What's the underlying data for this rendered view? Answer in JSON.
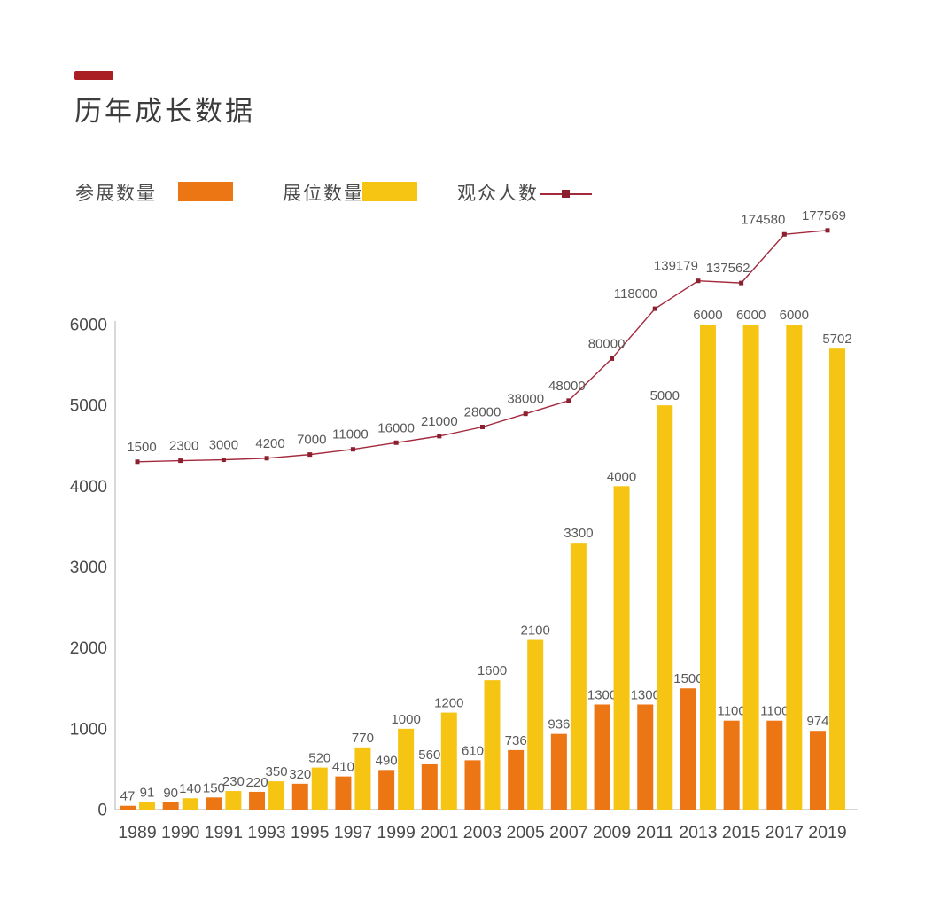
{
  "header": {
    "title": "历年成长数据",
    "accent_color": "#a91f24"
  },
  "legend": {
    "items": [
      {
        "label": "参展数量",
        "marker": "bar",
        "color": "#ec7514"
      },
      {
        "label": "展位数量",
        "marker": "bar",
        "color": "#f6c514"
      },
      {
        "label": "观众人数",
        "marker": "line",
        "color": "#a3293c"
      }
    ]
  },
  "chart_data": {
    "type": "combo-bar-line",
    "title": "历年成长数据",
    "categories": [
      "1989",
      "1990",
      "1991",
      "1993",
      "1995",
      "1997",
      "1999",
      "2001",
      "2003",
      "2005",
      "2007",
      "2009",
      "2011",
      "2013",
      "2015",
      "2017",
      "2019"
    ],
    "series": [
      {
        "name": "参展数量",
        "type": "bar",
        "color": "#ec7514",
        "values": [
          47,
          90,
          150,
          220,
          320,
          410,
          490,
          560,
          610,
          736,
          936,
          1300,
          1300,
          1500,
          1100,
          1100,
          974
        ]
      },
      {
        "name": "展位数量",
        "type": "bar",
        "color": "#f6c514",
        "values": [
          91,
          140,
          230,
          350,
          520,
          770,
          1000,
          1200,
          1600,
          2100,
          3300,
          4000,
          5000,
          6000,
          6000,
          6000,
          5702
        ]
      },
      {
        "name": "观众人数",
        "type": "line",
        "color": "#a3293c",
        "marker_color": "#8c1f2e",
        "values": [
          1500,
          2300,
          3000,
          4200,
          7000,
          11000,
          16000,
          21000,
          28000,
          38000,
          48000,
          80000,
          118000,
          139179,
          137562,
          174580,
          177569
        ]
      }
    ],
    "left_axis": {
      "label": "",
      "min": 0,
      "max": 6000,
      "ticks": [
        0,
        1000,
        2000,
        3000,
        4000,
        5000,
        6000
      ]
    },
    "grid": false,
    "value_labels": true,
    "legend_position": "top",
    "label_color": "#595959",
    "axis_text_color": "#4a4a4a",
    "axis_line_color": "#bdbdbd"
  }
}
